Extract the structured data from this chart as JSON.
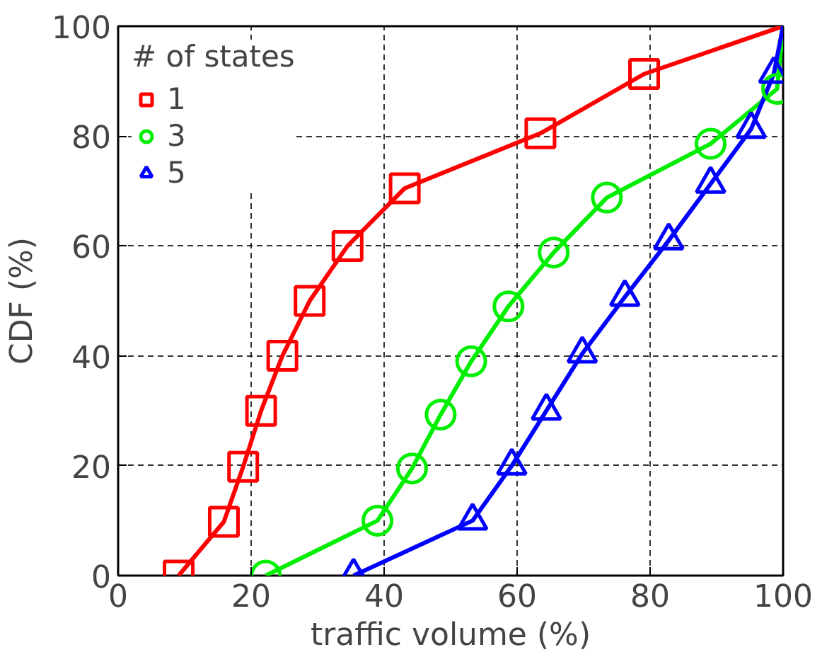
{
  "chart_data": {
    "type": "line",
    "xlabel": "traffic volume (%)",
    "ylabel": "CDF (%)",
    "legend_title": "# of states",
    "legend": "top left",
    "grid": true,
    "xlim": [
      0,
      100
    ],
    "ylim": [
      0,
      100
    ],
    "xticks": [
      0,
      20,
      40,
      60,
      80,
      100
    ],
    "yticks": [
      0,
      20,
      40,
      60,
      80,
      100
    ],
    "series": [
      {
        "color": "#ff0000",
        "marker": "none",
        "x": [
          9.1,
          15.9,
          18.8,
          21.5,
          24.7,
          28.8,
          34.5,
          43.1,
          63.5,
          79.1,
          100
        ],
        "values": [
          0,
          9.8,
          19.8,
          30,
          40,
          50,
          60,
          70.5,
          80.5,
          91.3,
          100
        ]
      },
      {
        "color": "#00ee00",
        "marker": "none",
        "x": [
          22.2,
          39,
          44.2,
          48.5,
          53.1,
          58.7,
          65.5,
          73.5,
          89.1,
          99.1,
          100
        ],
        "values": [
          0,
          10,
          19.5,
          29.3,
          39,
          49,
          58.8,
          68.8,
          78.6,
          88.6,
          100
        ]
      },
      {
        "color": "#0000ff",
        "marker": "none",
        "x": [
          35.4,
          53.3,
          59.2,
          64.4,
          69.8,
          76.2,
          82.8,
          89.1,
          95.2,
          98.6,
          100
        ],
        "values": [
          0,
          10,
          20,
          30,
          40.4,
          50.7,
          61,
          71.3,
          81.3,
          91.3,
          100
        ]
      },
      {
        "type": "scatter",
        "name": "1",
        "color": "#ff0000",
        "marker": "square",
        "x": [
          9.1,
          15.9,
          18.8,
          21.5,
          24.7,
          28.8,
          34.5,
          43.1,
          63.5,
          79.1
        ],
        "values": [
          0,
          9.8,
          19.8,
          30,
          40,
          50,
          60,
          70.5,
          80.5,
          91.3
        ]
      },
      {
        "type": "scatter",
        "name": "3",
        "color": "#00ee00",
        "marker": "circle",
        "x": [
          22.2,
          39,
          44.2,
          48.5,
          53.1,
          58.7,
          65.5,
          73.5,
          89.1,
          99.1
        ],
        "values": [
          0,
          10,
          19.5,
          29.3,
          39,
          49,
          58.8,
          68.8,
          78.6,
          88.6
        ]
      },
      {
        "type": "scatter",
        "name": "5",
        "color": "#0000ff",
        "marker": "triangle",
        "x": [
          35.4,
          53.3,
          59.2,
          64.4,
          69.8,
          76.2,
          82.8,
          89.1,
          95.2,
          98.6
        ],
        "values": [
          0,
          10,
          20,
          30,
          40.4,
          50.7,
          61,
          71.3,
          81.3,
          91.3
        ]
      }
    ]
  }
}
